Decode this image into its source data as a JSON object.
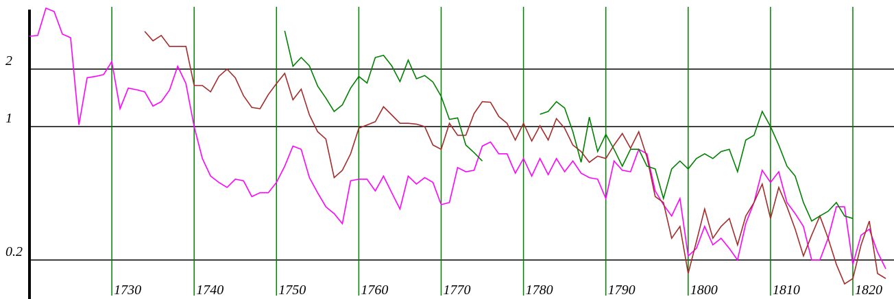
{
  "chart_data": {
    "type": "line",
    "x": [
      1720,
      1721,
      1722,
      1723,
      1724,
      1725,
      1726,
      1727,
      1728,
      1729,
      1730,
      1731,
      1732,
      1733,
      1734,
      1735,
      1736,
      1737,
      1738,
      1739,
      1740,
      1741,
      1742,
      1743,
      1744,
      1745,
      1746,
      1747,
      1748,
      1749,
      1750,
      1751,
      1752,
      1753,
      1754,
      1755,
      1756,
      1757,
      1758,
      1759,
      1760,
      1761,
      1762,
      1763,
      1764,
      1765,
      1766,
      1767,
      1768,
      1769,
      1770,
      1771,
      1772,
      1773,
      1774,
      1775,
      1776,
      1777,
      1778,
      1779,
      1780,
      1781,
      1782,
      1783,
      1784,
      1785,
      1786,
      1787,
      1788,
      1789,
      1790,
      1791,
      1792,
      1793,
      1794,
      1795,
      1796,
      1797,
      1798,
      1799,
      1800,
      1801,
      1802,
      1803,
      1804,
      1805,
      1806,
      1807,
      1808,
      1809,
      1810,
      1811,
      1812,
      1813,
      1814,
      1815,
      1816,
      1817,
      1818,
      1819,
      1820,
      1821,
      1822,
      1823,
      1824
    ],
    "series": [
      {
        "color": "#ff00ff",
        "values": [
          2.97,
          3.0,
          4.17,
          4.0,
          3.05,
          2.92,
          1.02,
          1.8,
          1.83,
          1.87,
          2.19,
          1.24,
          1.59,
          1.56,
          1.52,
          1.28,
          1.35,
          1.55,
          2.07,
          1.68,
          1.0,
          0.68,
          0.55,
          0.51,
          0.48,
          0.53,
          0.52,
          0.43,
          0.45,
          0.45,
          0.51,
          0.62,
          0.79,
          0.76,
          0.54,
          0.45,
          0.38,
          0.35,
          0.31,
          0.52,
          0.53,
          0.53,
          0.46,
          0.55,
          0.45,
          0.37,
          0.55,
          0.5,
          0.54,
          0.51,
          0.39,
          0.4,
          0.61,
          0.58,
          0.59,
          0.79,
          0.83,
          0.72,
          0.72,
          0.57,
          0.68,
          0.55,
          0.68,
          0.56,
          0.68,
          0.58,
          0.66,
          0.57,
          0.54,
          0.53,
          0.42,
          0.66,
          0.59,
          0.58,
          0.76,
          0.72,
          0.46,
          0.39,
          0.34,
          0.42,
          0.21,
          0.23,
          0.3,
          0.24,
          0.26,
          0.23,
          0.2,
          0.31,
          0.4,
          0.59,
          0.51,
          0.58,
          0.4,
          0.35,
          0.3,
          0.2,
          0.2,
          0.26,
          0.38,
          0.38,
          0.19,
          0.27,
          0.29,
          0.22,
          0.18
        ]
      },
      {
        "color": "#a52a2a",
        "values": [
          null,
          null,
          null,
          null,
          null,
          null,
          null,
          null,
          null,
          null,
          null,
          null,
          null,
          null,
          3.15,
          2.81,
          3.0,
          2.63,
          2.63,
          2.63,
          1.64,
          1.64,
          1.52,
          1.83,
          2.0,
          1.8,
          1.45,
          1.26,
          1.24,
          1.47,
          1.68,
          1.9,
          1.38,
          1.57,
          1.15,
          0.94,
          0.86,
          0.54,
          0.59,
          0.72,
          0.98,
          1.02,
          1.06,
          1.27,
          1.15,
          1.04,
          1.04,
          1.03,
          1.0,
          0.8,
          0.76,
          1.04,
          0.9,
          0.9,
          1.17,
          1.35,
          1.34,
          1.13,
          1.04,
          0.85,
          1.04,
          0.84,
          1.01,
          0.85,
          1.1,
          0.98,
          0.8,
          0.74,
          0.65,
          0.7,
          0.68,
          0.8,
          0.92,
          0.77,
          0.94,
          0.69,
          0.43,
          0.4,
          0.26,
          0.3,
          0.17,
          0.25,
          0.37,
          0.26,
          0.3,
          0.33,
          0.24,
          0.34,
          0.4,
          0.5,
          0.33,
          0.48,
          0.38,
          0.29,
          0.21,
          0.27,
          0.34,
          0.26,
          0.19,
          0.15,
          0.16,
          0.24,
          0.32,
          0.17,
          0.16
        ]
      },
      {
        "color": "#008000",
        "values": [
          null,
          null,
          null,
          null,
          null,
          null,
          null,
          null,
          null,
          null,
          null,
          null,
          null,
          null,
          null,
          null,
          null,
          null,
          null,
          null,
          null,
          null,
          null,
          null,
          null,
          null,
          null,
          null,
          null,
          null,
          null,
          3.17,
          2.07,
          2.3,
          2.08,
          1.63,
          1.41,
          1.2,
          1.3,
          1.59,
          1.83,
          1.69,
          2.3,
          2.36,
          2.08,
          1.72,
          2.23,
          1.78,
          1.85,
          1.71,
          1.44,
          1.09,
          1.11,
          0.8,
          0.73,
          0.66,
          null,
          null,
          null,
          null,
          null,
          null,
          1.16,
          1.2,
          1.35,
          1.25,
          0.94,
          0.65,
          1.12,
          0.74,
          0.91,
          0.76,
          0.62,
          0.76,
          0.76,
          0.62,
          0.6,
          0.42,
          0.6,
          0.66,
          0.6,
          0.68,
          0.72,
          0.68,
          0.74,
          0.76,
          0.58,
          0.85,
          0.9,
          1.2,
          1.0,
          0.8,
          0.62,
          0.55,
          0.4,
          0.32,
          0.34,
          0.36,
          0.4,
          0.34,
          0.33,
          null,
          null,
          null,
          null
        ]
      }
    ],
    "xlim": [
      1720,
      1825
    ],
    "xticks": [
      1730,
      1740,
      1750,
      1760,
      1770,
      1780,
      1790,
      1800,
      1810,
      1820
    ],
    "ylim": [
      0.125,
      4.6
    ],
    "yticks": [
      2,
      1,
      0.2
    ],
    "log_y": true,
    "grid": true,
    "grid_x_color": "#008000",
    "grid_y_color": "#000000"
  }
}
